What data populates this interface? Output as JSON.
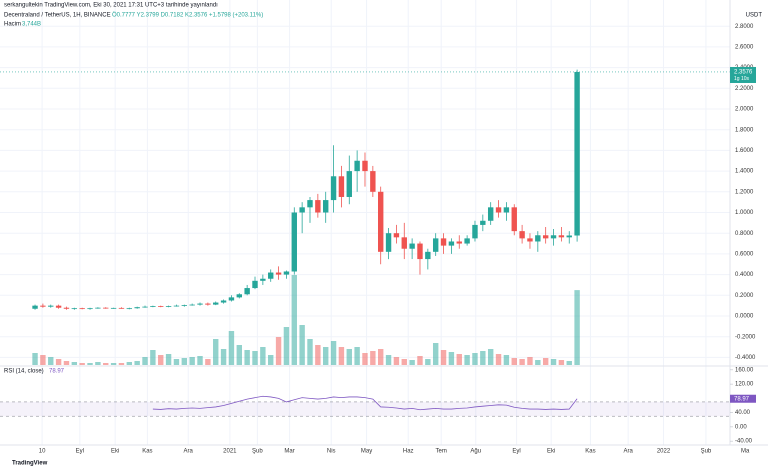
{
  "header": {
    "publisher": "serkangultekin TradingView.com, Eki 30, 2021 17:31 UTC+3 tarihinde yayınlandı",
    "symbol": "Decentraland / TetherUS, 1H, BINANCE",
    "ohlc_legend": "Ö0.7777 Y2.3799 D0.7182 K2.3576 +1.5798 (+203.11%)",
    "currency": "USDT",
    "countdown": "1g 10s",
    "brand": "TradingView"
  },
  "chart_data": [
    {
      "type": "candlestick",
      "up_color": "#26a69a",
      "down_color": "#ef5350",
      "grid": true,
      "open": [
        0.07,
        0.1,
        0.09,
        0.1,
        0.08,
        0.07,
        0.075,
        0.07,
        0.075,
        0.08,
        0.075,
        0.078,
        0.072,
        0.075,
        0.085,
        0.09,
        0.095,
        0.09,
        0.095,
        0.1,
        0.105,
        0.11,
        0.12,
        0.11,
        0.13,
        0.15,
        0.18,
        0.21,
        0.27,
        0.34,
        0.36,
        0.42,
        0.4,
        0.43,
        1.0,
        1.05,
        1.12,
        1.0,
        1.12,
        1.35,
        1.15,
        1.4,
        1.5,
        1.4,
        1.2,
        0.62,
        0.8,
        0.76,
        0.65,
        0.7,
        0.55,
        0.62,
        0.75,
        0.68,
        0.72,
        0.7,
        0.75,
        0.88,
        0.92,
        1.05,
        1.0,
        1.05,
        0.82,
        0.75,
        0.72,
        0.78,
        0.75,
        0.78,
        0.76,
        0.7777
      ],
      "high": [
        0.11,
        0.12,
        0.11,
        0.11,
        0.09,
        0.08,
        0.08,
        0.08,
        0.085,
        0.085,
        0.08,
        0.085,
        0.08,
        0.09,
        0.1,
        0.1,
        0.1,
        0.1,
        0.11,
        0.11,
        0.12,
        0.13,
        0.13,
        0.14,
        0.16,
        0.2,
        0.22,
        0.3,
        0.38,
        0.4,
        0.45,
        0.48,
        0.44,
        1.05,
        1.1,
        1.15,
        1.18,
        1.2,
        1.65,
        1.45,
        1.55,
        1.6,
        1.58,
        1.45,
        1.25,
        0.85,
        0.88,
        0.9,
        0.75,
        0.72,
        0.65,
        0.8,
        0.8,
        0.75,
        0.78,
        0.78,
        0.92,
        0.98,
        1.1,
        1.12,
        1.1,
        1.08,
        0.88,
        0.8,
        0.82,
        0.86,
        0.84,
        0.86,
        0.82,
        2.3799
      ],
      "low": [
        0.06,
        0.08,
        0.08,
        0.07,
        0.06,
        0.06,
        0.065,
        0.06,
        0.07,
        0.07,
        0.07,
        0.07,
        0.065,
        0.07,
        0.08,
        0.085,
        0.085,
        0.085,
        0.09,
        0.09,
        0.1,
        0.1,
        0.1,
        0.105,
        0.12,
        0.14,
        0.17,
        0.2,
        0.26,
        0.3,
        0.33,
        0.35,
        0.36,
        0.4,
        0.8,
        0.9,
        0.95,
        0.9,
        1.0,
        1.05,
        1.08,
        1.2,
        1.25,
        1.15,
        0.5,
        0.55,
        0.7,
        0.55,
        0.55,
        0.4,
        0.45,
        0.58,
        0.6,
        0.6,
        0.65,
        0.68,
        0.72,
        0.82,
        0.88,
        0.95,
        0.92,
        0.78,
        0.7,
        0.65,
        0.62,
        0.7,
        0.68,
        0.72,
        0.7,
        0.7182
      ],
      "close": [
        0.1,
        0.09,
        0.1,
        0.08,
        0.07,
        0.075,
        0.07,
        0.075,
        0.08,
        0.075,
        0.078,
        0.072,
        0.075,
        0.085,
        0.09,
        0.095,
        0.09,
        0.095,
        0.1,
        0.105,
        0.11,
        0.12,
        0.11,
        0.13,
        0.15,
        0.18,
        0.21,
        0.27,
        0.34,
        0.36,
        0.42,
        0.4,
        0.43,
        1.0,
        1.05,
        1.12,
        1.0,
        1.12,
        1.35,
        1.15,
        1.4,
        1.5,
        1.4,
        1.2,
        0.62,
        0.8,
        0.76,
        0.65,
        0.7,
        0.55,
        0.62,
        0.75,
        0.68,
        0.72,
        0.7,
        0.75,
        0.88,
        0.92,
        1.05,
        1.0,
        1.05,
        0.82,
        0.75,
        0.72,
        0.78,
        0.75,
        0.78,
        0.76,
        0.7778,
        2.3576
      ],
      "volume": {
        "name": "Hacim",
        "last_value_label": "3,744B",
        "values": [
          0.6,
          0.5,
          0.4,
          0.3,
          0.2,
          0.15,
          0.1,
          0.1,
          0.15,
          0.1,
          0.1,
          0.1,
          0.15,
          0.2,
          0.4,
          0.75,
          0.5,
          0.55,
          0.3,
          0.35,
          0.4,
          0.45,
          0.3,
          1.3,
          0.8,
          1.7,
          1.0,
          0.75,
          0.7,
          0.9,
          0.5,
          1.4,
          1.9,
          4.5,
          2.0,
          1.3,
          1.0,
          0.9,
          1.2,
          0.9,
          0.8,
          0.9,
          0.6,
          0.7,
          0.8,
          0.5,
          0.4,
          0.3,
          0.25,
          0.45,
          0.3,
          1.1,
          0.75,
          0.65,
          0.55,
          0.5,
          0.6,
          0.7,
          0.8,
          0.55,
          0.5,
          0.35,
          0.3,
          0.4,
          0.25,
          0.35,
          0.3,
          0.25,
          0.2,
          3.744
        ]
      },
      "ylim": [
        -0.4734,
        2.9758
      ],
      "yticks": [
        {
          "value": 2.8,
          "label": "2.8000"
        },
        {
          "value": 2.6,
          "label": "2.6000"
        },
        {
          "value": 2.4,
          "label": "2.4000"
        },
        {
          "value": 2.2,
          "label": "2.2000"
        },
        {
          "value": 2.0,
          "label": "2.0000"
        },
        {
          "value": 1.8,
          "label": "1.8000"
        },
        {
          "value": 1.6,
          "label": "1.6000"
        },
        {
          "value": 1.4,
          "label": "1.4000"
        },
        {
          "value": 1.2,
          "label": "1.2000"
        },
        {
          "value": 1.0,
          "label": "1.0000"
        },
        {
          "value": 0.8,
          "label": "0.8000"
        },
        {
          "value": 0.6,
          "label": "0.6000"
        },
        {
          "value": 0.4,
          "label": "0.4000"
        },
        {
          "value": 0.2,
          "label": "0.2000"
        },
        {
          "value": 0,
          "label": "0.0000"
        },
        {
          "value": -0.2,
          "label": "-0.2000"
        },
        {
          "value": -0.4,
          "label": "-0.4000"
        }
      ],
      "xlim": [
        -4.46,
        93.3
      ],
      "xticks": [
        {
          "value": 0.9,
          "label": "10"
        },
        {
          "value": 5.7,
          "label": "Eyl"
        },
        {
          "value": 10.2,
          "label": "Eki"
        },
        {
          "value": 14.3,
          "label": "Kas"
        },
        {
          "value": 19.5,
          "label": "Ara"
        },
        {
          "value": 24.8,
          "label": "2021"
        },
        {
          "value": 28.3,
          "label": "Şub"
        },
        {
          "value": 32.4,
          "label": "Mar"
        },
        {
          "value": 37.7,
          "label": "Nis"
        },
        {
          "value": 42.2,
          "label": "May"
        },
        {
          "value": 47.5,
          "label": "Haz"
        },
        {
          "value": 51.7,
          "label": "Tem"
        },
        {
          "value": 56.1,
          "label": "Ağu"
        },
        {
          "value": 61.3,
          "label": "Eyl"
        },
        {
          "value": 65.7,
          "label": "Eki"
        },
        {
          "value": 70.7,
          "label": "Kas"
        },
        {
          "value": 75.5,
          "label": "Ara"
        },
        {
          "value": 80,
          "label": "2022"
        },
        {
          "value": 85.4,
          "label": "Şub"
        },
        {
          "value": 90.4,
          "label": "Ma"
        }
      ]
    },
    {
      "type": "line",
      "name": "RSI (14, close)",
      "color": "#7e57c2",
      "band": [
        30,
        70
      ],
      "band_color": "#7e57c2",
      "values": [
        null,
        null,
        null,
        null,
        null,
        null,
        null,
        null,
        null,
        null,
        null,
        null,
        null,
        null,
        null,
        50,
        49,
        51,
        50,
        52,
        53,
        52,
        54,
        56,
        60,
        66,
        72,
        78,
        82,
        86,
        84,
        80,
        70,
        76,
        82,
        80,
        78,
        80,
        84,
        82,
        84,
        84,
        82,
        78,
        56,
        55,
        53,
        50,
        52,
        48,
        50,
        52,
        50,
        50,
        52,
        53,
        56,
        58,
        60,
        62,
        61,
        55,
        52,
        50,
        50,
        49,
        50,
        49,
        50,
        78.97
      ],
      "ylim": [
        -48,
        168
      ],
      "yticks": [
        {
          "value": 160,
          "label": "160.00"
        },
        {
          "value": 120,
          "label": "120.00"
        },
        {
          "value": 80,
          "label": "80.00"
        },
        {
          "value": 40,
          "label": "40.00"
        },
        {
          "value": 0,
          "label": "0.00"
        },
        {
          "value": -40,
          "label": "-40.00"
        }
      ]
    }
  ]
}
